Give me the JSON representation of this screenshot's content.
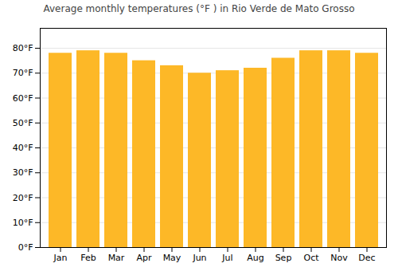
{
  "chart_data": {
    "type": "bar",
    "title": "Average monthly temperatures (°F ) in Rio Verde de Mato Grosso",
    "categories": [
      "Jan",
      "Feb",
      "Mar",
      "Apr",
      "May",
      "Jun",
      "Jul",
      "Aug",
      "Sep",
      "Oct",
      "Nov",
      "Dec"
    ],
    "values": [
      78,
      79,
      78,
      75,
      73,
      70,
      71,
      72,
      76,
      79,
      79,
      78
    ],
    "color": "#FDB827",
    "ylim": [
      0,
      88
    ],
    "yticks": [
      {
        "value": 0,
        "label": "0°F"
      },
      {
        "value": 10,
        "label": "10°F"
      },
      {
        "value": 20,
        "label": "20°F"
      },
      {
        "value": 30,
        "label": "30°F"
      },
      {
        "value": 40,
        "label": "40°F"
      },
      {
        "value": 50,
        "label": "50°F"
      },
      {
        "value": 60,
        "label": "60°F"
      },
      {
        "value": 70,
        "label": "70°F"
      },
      {
        "value": 80,
        "label": "80°F"
      }
    ],
    "grid": true
  }
}
